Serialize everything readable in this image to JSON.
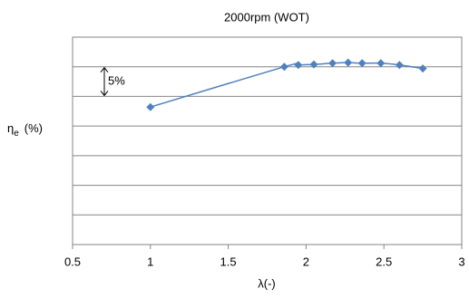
{
  "chart_data": {
    "type": "line",
    "title": "2000rpm  (WOT)",
    "x_label": "λ(-)",
    "y_label": {
      "symbol": "η",
      "subscript": "e",
      "unit": "(%)"
    },
    "annotation": "5%",
    "x": [
      1,
      1.86,
      1.95,
      2.05,
      2.17,
      2.27,
      2.36,
      2.48,
      2.6,
      2.75
    ],
    "series": [
      {
        "color": "#4f81bd",
        "values": [
          23.2,
          30.0,
          30.3,
          30.4,
          30.6,
          30.7,
          30.6,
          30.6,
          30.3,
          29.7
        ]
      }
    ],
    "xlim": [
      0.5,
      3
    ],
    "xticks": [
      0.5,
      1,
      1.5,
      2,
      2.5,
      3
    ],
    "ylim": [
      0,
      35
    ],
    "yticks": [
      0,
      5,
      10,
      15,
      20,
      25,
      30,
      35
    ],
    "grid": true
  }
}
